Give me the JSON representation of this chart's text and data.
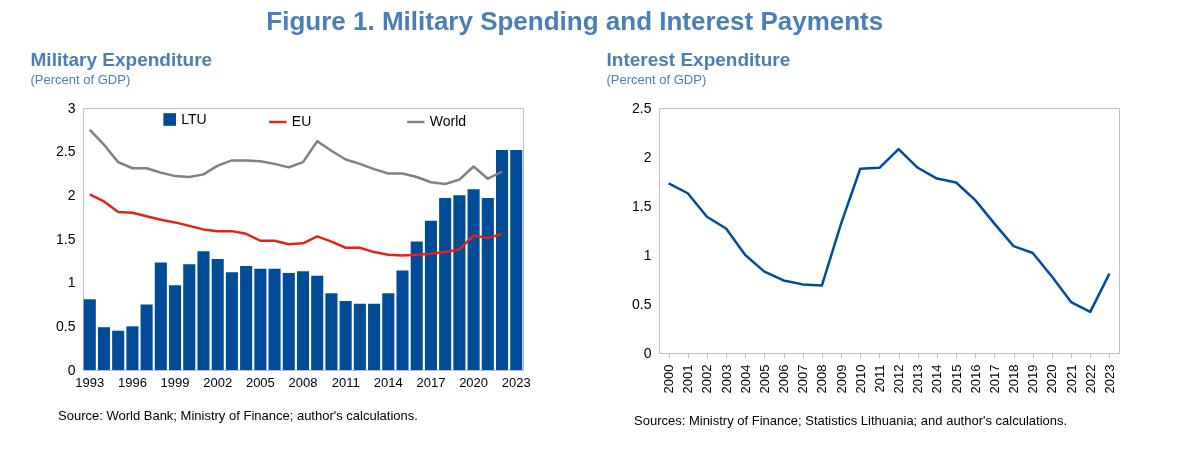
{
  "chart_data": [
    {
      "type": "bar",
      "title": "Military Expenditure",
      "ylabel": "(Percent of GDP)",
      "categories": [
        "1993",
        null,
        null,
        "1996",
        null,
        null,
        "1999",
        null,
        null,
        "2002",
        null,
        null,
        "2005",
        null,
        null,
        "2008",
        null,
        null,
        "2011",
        null,
        null,
        "2014",
        null,
        null,
        "2017",
        null,
        null,
        "2020",
        null,
        null,
        "2023"
      ],
      "series": [
        {
          "name": "LTU",
          "color": "#004c97",
          "values": [
            0.81,
            0.49,
            0.45,
            0.5,
            0.75,
            1.23,
            0.97,
            1.21,
            1.36,
            1.27,
            1.12,
            1.19,
            1.16,
            1.16,
            1.11,
            1.13,
            1.08,
            0.88,
            0.79,
            0.76,
            0.76,
            0.88,
            1.14,
            1.47,
            1.71,
            1.97,
            2.0,
            2.07,
            1.97,
            2.52,
            2.52
          ]
        },
        {
          "name": "EU",
          "type": "line",
          "color": "#e2231a",
          "values": [
            2.01,
            1.93,
            1.81,
            1.8,
            1.76,
            1.72,
            1.69,
            1.65,
            1.61,
            1.59,
            1.59,
            1.56,
            1.48,
            1.48,
            1.44,
            1.45,
            1.53,
            1.47,
            1.4,
            1.4,
            1.35,
            1.32,
            1.31,
            1.32,
            1.33,
            1.35,
            1.38,
            1.54,
            1.51,
            1.56,
            null
          ]
        },
        {
          "name": "World",
          "type": "line",
          "color": "#808080",
          "values": [
            2.75,
            2.58,
            2.38,
            2.31,
            2.31,
            2.26,
            2.22,
            2.21,
            2.24,
            2.34,
            2.4,
            2.4,
            2.39,
            2.36,
            2.32,
            2.38,
            2.62,
            2.51,
            2.41,
            2.36,
            2.3,
            2.25,
            2.25,
            2.21,
            2.15,
            2.13,
            2.18,
            2.33,
            2.19,
            2.27,
            null
          ]
        }
      ],
      "ylim": [
        0,
        3
      ],
      "yticks": [
        0,
        0.5,
        1,
        1.5,
        2,
        2.5,
        3
      ],
      "grid": false,
      "legend": "top",
      "annotations": [
        "Figure 1. Military Spending and Interest Payments",
        "Source: World Bank; Ministry of Finance; author's calculations."
      ]
    },
    {
      "type": "line",
      "title": "Interest Expenditure",
      "ylabel": "(Percent of GDP)",
      "categories": [
        "2000",
        "2001",
        "2002",
        "2003",
        "2004",
        "2005",
        "2006",
        "2007",
        "2008",
        "2009",
        "2010",
        "2011",
        "2012",
        "2013",
        "2014",
        "2015",
        "2016",
        "2017",
        "2018",
        "2019",
        "2020",
        "2021",
        "2022",
        "2023"
      ],
      "series": [
        {
          "color": "#004c97",
          "values": [
            1.73,
            1.63,
            1.39,
            1.27,
            1.0,
            0.83,
            0.74,
            0.7,
            0.69,
            1.32,
            1.88,
            1.89,
            2.08,
            1.89,
            1.78,
            1.74,
            1.56,
            1.32,
            1.09,
            1.02,
            0.78,
            0.52,
            0.42,
            0.81
          ]
        }
      ],
      "ylim": [
        0,
        2.5
      ],
      "yticks": [
        0,
        0.5,
        1,
        1.5,
        2,
        2.5
      ],
      "grid": false,
      "legend": false,
      "marker": "none",
      "annotations": [
        "Sources: Ministry of Finance; Statistics Lithuania; and author's calculations."
      ]
    }
  ]
}
